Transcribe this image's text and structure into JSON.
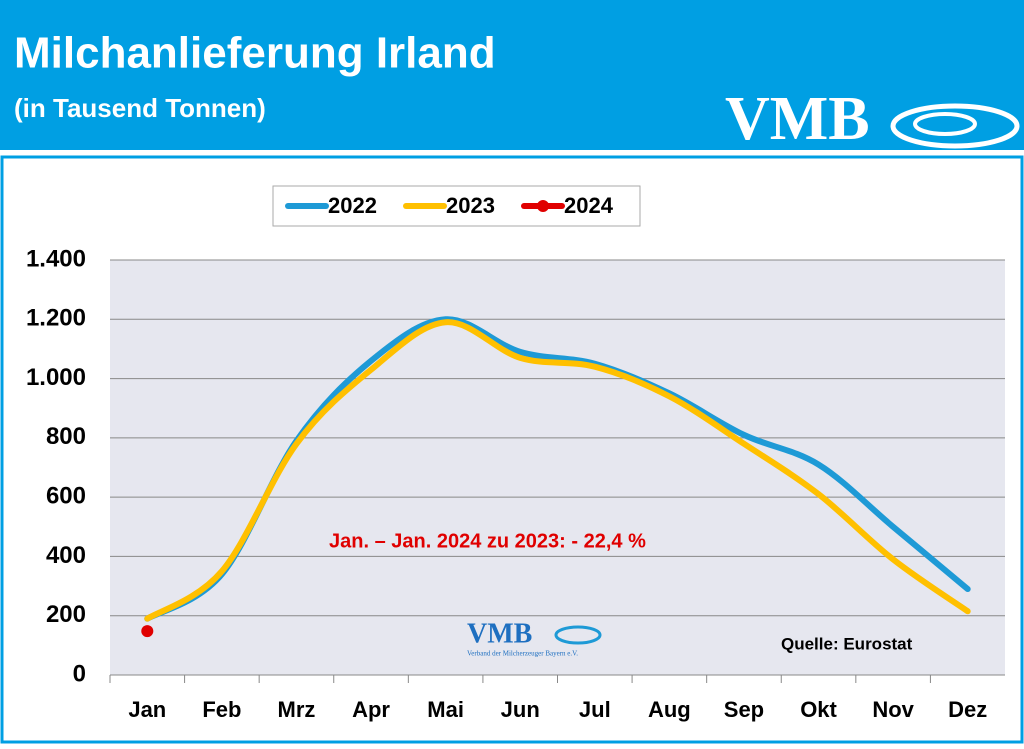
{
  "header": {
    "title": "Milchanlieferung Irland",
    "subtitle": "(in Tausend Tonnen)",
    "logo": "VMB"
  },
  "chart_data": {
    "type": "line",
    "categories": [
      "Jan",
      "Feb",
      "Mrz",
      "Apr",
      "Mai",
      "Jun",
      "Jul",
      "Aug",
      "Sep",
      "Okt",
      "Nov",
      "Dez"
    ],
    "series": [
      {
        "name": "2022",
        "color": "#1e9ad6",
        "values": [
          190,
          340,
          790,
          1060,
          1200,
          1090,
          1050,
          950,
          810,
          710,
          500,
          290
        ]
      },
      {
        "name": "2023",
        "color": "#ffc000",
        "values": [
          190,
          350,
          780,
          1030,
          1190,
          1070,
          1040,
          940,
          780,
          610,
          390,
          215
        ]
      },
      {
        "name": "2024",
        "color": "#e00000",
        "marker": "circle",
        "values": [
          148,
          null,
          null,
          null,
          null,
          null,
          null,
          null,
          null,
          null,
          null,
          null
        ]
      }
    ],
    "ylim": [
      0,
      1400
    ],
    "yticks": [
      0,
      200,
      400,
      600,
      800,
      {
        "value": 1000,
        "label": "1.000"
      },
      {
        "value": 1200,
        "label": "1.200"
      },
      {
        "value": 1400,
        "label": "1.400"
      }
    ],
    "grid": true,
    "legend": "top",
    "annotation": "Jan. – Jan. 2024 zu 2023: - 22,4 %",
    "source": "Quelle: Eurostat",
    "watermark": "VMB",
    "watermark_subtitle": "Verband der Milcherzeuger Bayern e.V."
  }
}
